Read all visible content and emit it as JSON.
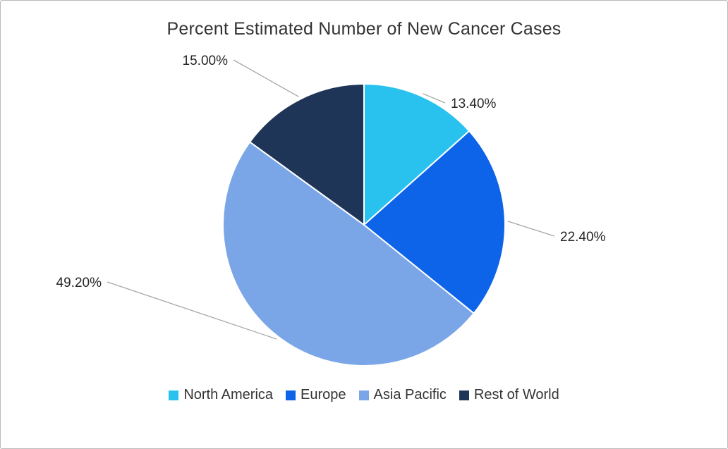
{
  "chart_data": {
    "type": "pie",
    "title": "Percent Estimated Number of New Cancer Cases",
    "slices": [
      {
        "name": "North America",
        "value": 13.4,
        "label": "13.40%",
        "color": "#29C2EF"
      },
      {
        "name": "Europe",
        "value": 22.4,
        "label": "22.40%",
        "color": "#0D64E8"
      },
      {
        "name": "Asia Pacific",
        "value": 49.2,
        "label": "49.20%",
        "color": "#7AA6E8"
      },
      {
        "name": "Rest of World",
        "value": 15.0,
        "label": "15.00%",
        "color": "#1F3557"
      }
    ],
    "start_angle_deg": 0,
    "direction": "clockwise",
    "legend_position": "bottom",
    "data_labels_outside": true,
    "leader_line_color": "#A6A6A6",
    "label_color": "#262626",
    "slice_border_color": "#FFFFFF"
  }
}
